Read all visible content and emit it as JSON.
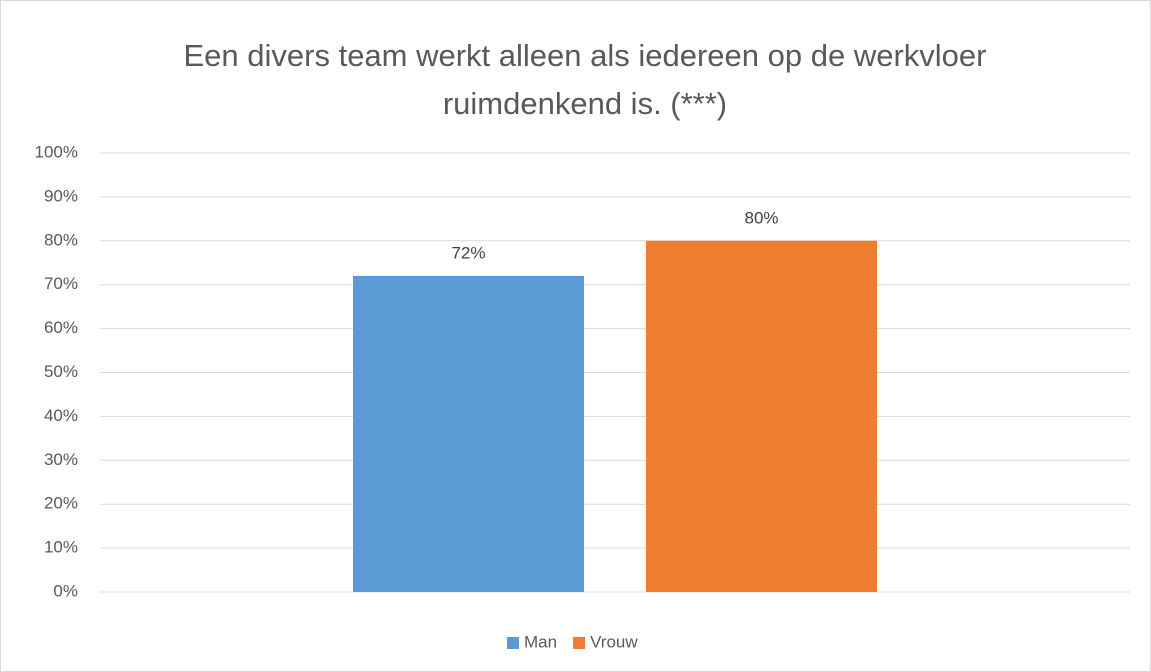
{
  "chart_data": {
    "type": "bar",
    "title": "Een divers team werkt alleen als iedereen op de werkvloer ruimdenkend is. (***)",
    "categories": [
      null
    ],
    "series": [
      {
        "name": "Man",
        "color": "#5b9bd5",
        "values": [
          72
        ],
        "value_labels": [
          "72%"
        ]
      },
      {
        "name": "Vrouw",
        "color": "#ed7d31",
        "values": [
          80
        ],
        "value_labels": [
          "80%"
        ]
      }
    ],
    "ylim": [
      0,
      100
    ],
    "yticks": [
      {
        "value": 0,
        "label": "0%"
      },
      {
        "value": 10,
        "label": "10%"
      },
      {
        "value": 20,
        "label": "20%"
      },
      {
        "value": 30,
        "label": "30%"
      },
      {
        "value": 40,
        "label": "40%"
      },
      {
        "value": 50,
        "label": "50%"
      },
      {
        "value": 60,
        "label": "60%"
      },
      {
        "value": 70,
        "label": "70%"
      },
      {
        "value": 80,
        "label": "80%"
      },
      {
        "value": 90,
        "label": "90%"
      },
      {
        "value": 100,
        "label": "100%"
      }
    ],
    "grid": true,
    "legend": "bottom"
  }
}
